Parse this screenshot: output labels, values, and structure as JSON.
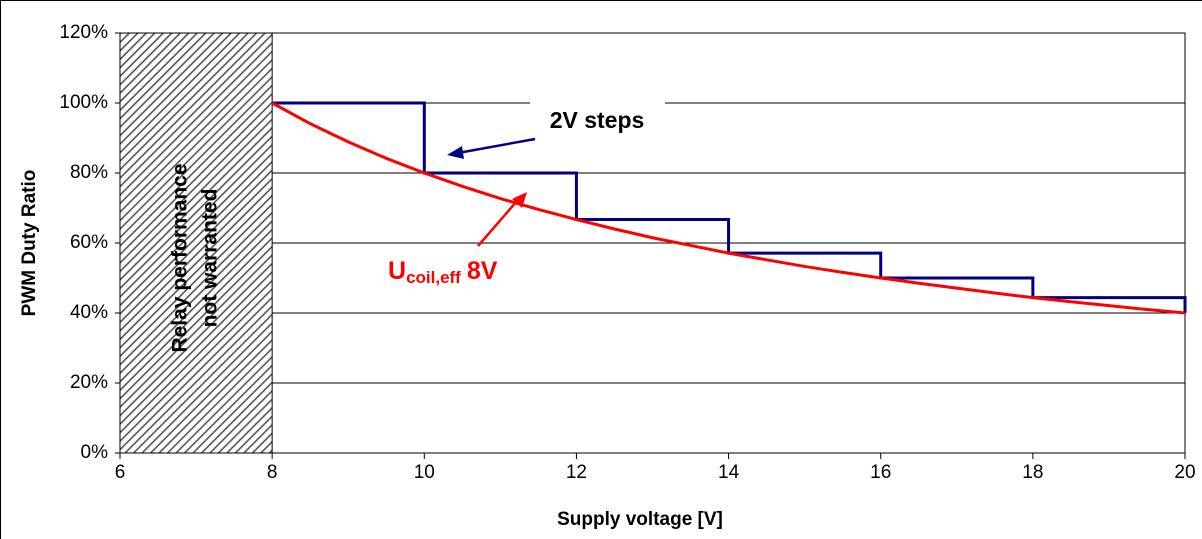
{
  "chart_data": {
    "type": "line",
    "x_label": "Supply voltage [V]",
    "y_label": "PWM Duty Ratio",
    "xlim": [
      6,
      20
    ],
    "xticks": [
      6,
      8,
      10,
      12,
      14,
      16,
      18,
      20
    ],
    "ylim": [
      0,
      120
    ],
    "yticks": [
      {
        "value": 0,
        "label": "0%"
      },
      {
        "value": 20,
        "label": "20%"
      },
      {
        "value": 40,
        "label": "40%"
      },
      {
        "value": 60,
        "label": "60%"
      },
      {
        "value": 80,
        "label": "80%"
      },
      {
        "value": 100,
        "label": "100%"
      },
      {
        "value": 120,
        "label": "120%"
      }
    ],
    "grid": true,
    "shaded_region": {
      "x": [
        6,
        8
      ],
      "label": [
        "Relay performance",
        "not warranted"
      ]
    },
    "series": [
      {
        "name": "2V steps",
        "color": "#000080",
        "x": [
          8,
          10,
          10,
          12,
          12,
          14,
          14,
          16,
          16,
          18,
          18,
          20,
          20
        ],
        "values": [
          100,
          100,
          80,
          80,
          66.7,
          66.7,
          57.1,
          57.1,
          50,
          50,
          44.4,
          44.4,
          40
        ]
      },
      {
        "name": "Ucoil,eff 8V",
        "color": "#ff0000",
        "x": [
          8,
          8.5,
          9,
          9.5,
          10,
          10.5,
          11,
          11.5,
          12,
          12.5,
          13,
          13.5,
          14,
          14.5,
          15,
          15.5,
          16,
          16.5,
          17,
          17.5,
          18,
          18.5,
          19,
          19.5,
          20
        ],
        "values": [
          100,
          94.1,
          88.9,
          84.2,
          80,
          76.2,
          72.7,
          69.6,
          66.7,
          64,
          61.5,
          59.3,
          57.1,
          55.2,
          53.3,
          51.6,
          50,
          48.5,
          47.1,
          45.7,
          44.4,
          43.2,
          42.1,
          41,
          40
        ]
      }
    ],
    "annotations": [
      {
        "text": "2V steps",
        "color": "#000080"
      },
      {
        "text": "U",
        "subscript": "coil,eff",
        "suffix": "8V",
        "color": "#ff0000"
      }
    ]
  }
}
